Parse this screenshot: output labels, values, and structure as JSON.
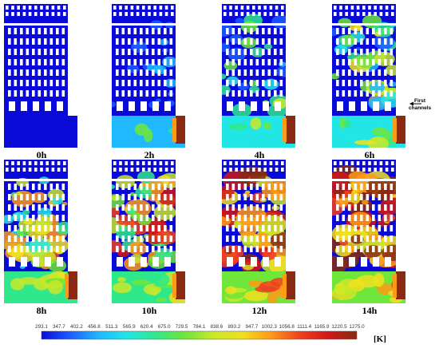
{
  "panels": [
    {
      "label": "0h",
      "stage": 0.0
    },
    {
      "label": "2h",
      "stage": 0.14
    },
    {
      "label": "4h",
      "stage": 0.3
    },
    {
      "label": "6h",
      "stage": 0.45
    },
    {
      "label": "8h",
      "stage": 0.6
    },
    {
      "label": "10h",
      "stage": 0.68
    },
    {
      "label": "12h",
      "stage": 0.85
    },
    {
      "label": "14h",
      "stage": 0.92
    }
  ],
  "colorbar": {
    "ticks": [
      "293.1",
      "347.7",
      "402.2",
      "456.8",
      "511.3",
      "565.9",
      "620.4",
      "675.0",
      "729.5",
      "784.1",
      "838.6",
      "893.2",
      "947.7",
      "1002.3",
      "1056.8",
      "1111.4",
      "1165.9",
      "1220.5",
      "1275.0"
    ],
    "unit": "[K]",
    "colors": [
      "#0a0ad8",
      "#1e5cff",
      "#20b8ff",
      "#22e6e6",
      "#2fe88c",
      "#6fe63a",
      "#c8e82a",
      "#f0e020",
      "#ff9a18",
      "#f04020",
      "#d01818",
      "#8a2a12"
    ]
  },
  "annotation": {
    "line1": "First",
    "line2": "channels"
  }
}
